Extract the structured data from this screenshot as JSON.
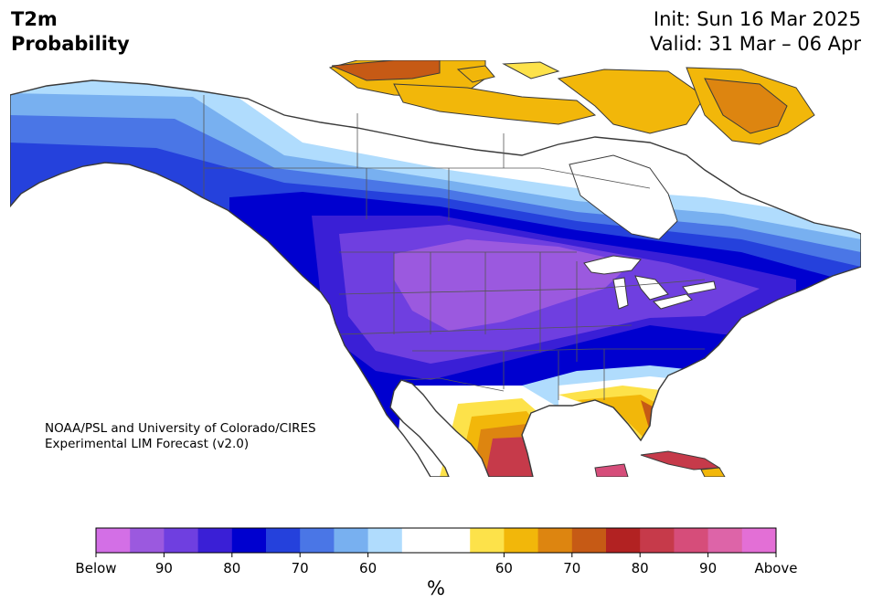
{
  "header": {
    "variable": "T2m",
    "metric": "Probability",
    "init": "Init: Sun 16 Mar 2025",
    "valid": "Valid: 31 Mar – 06 Apr"
  },
  "credit": {
    "line1": "NOAA/PSL and University of Colorado/CIRES",
    "line2": "Experimental LIM Forecast (v2.0)"
  },
  "colorbar": {
    "unit": "%",
    "below_colors": [
      "#d36fe6",
      "#9b59df",
      "#6f3fe0",
      "#3a1fd6",
      "#0000cf",
      "#2541dc",
      "#4a76e6",
      "#78b0f0",
      "#b0dcfd"
    ],
    "neutral_color": "#ffffff",
    "above_colors": [
      "#fde24a",
      "#f2b70a",
      "#dd8510",
      "#c65a15",
      "#b22222",
      "#c63a4a",
      "#d64d7a",
      "#dd64a8",
      "#e36fd6"
    ],
    "below_ticks": [
      {
        "label": "Below",
        "pos": 0
      },
      {
        "label": "90",
        "pos": 2
      },
      {
        "label": "80",
        "pos": 4
      },
      {
        "label": "70",
        "pos": 6
      },
      {
        "label": "60",
        "pos": 8
      }
    ],
    "above_ticks": [
      {
        "label": "60",
        "pos": 1
      },
      {
        "label": "70",
        "pos": 3
      },
      {
        "label": "80",
        "pos": 5
      },
      {
        "label": "90",
        "pos": 7
      },
      {
        "label": "Above",
        "pos": 9
      }
    ]
  },
  "map_colors": {
    "land_outline": "#3a3a3a",
    "border": "#555555"
  }
}
